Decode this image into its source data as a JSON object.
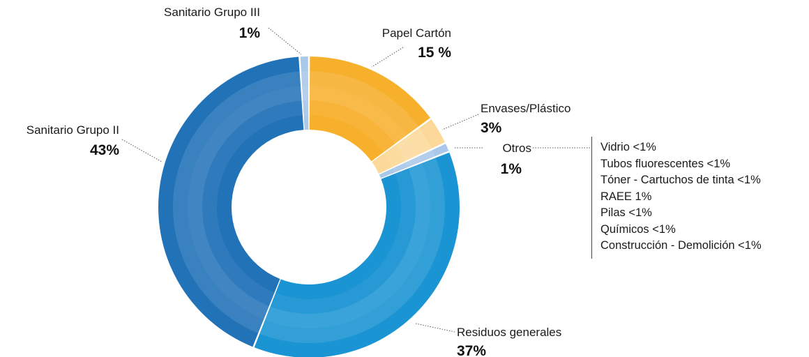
{
  "chart_data": {
    "type": "pie",
    "variant": "donut",
    "slices": [
      {
        "label": "Papel Cartón",
        "pct_label": "15 %",
        "value": 15,
        "color": "#f7b02c"
      },
      {
        "label": "Envases/Plástico",
        "pct_label": "3%",
        "value": 3,
        "color": "#fcd99a"
      },
      {
        "label": "Otros",
        "pct_label": "1%",
        "value": 1,
        "color": "#a9c8ea"
      },
      {
        "label": "Residuos generales",
        "pct_label": "37%",
        "value": 37,
        "color": "#1a94d3"
      },
      {
        "label": "Sanitario Grupo II",
        "pct_label": "43%",
        "value": 43,
        "color": "#2272b8"
      },
      {
        "label": "Sanitario Grupo III",
        "pct_label": "1%",
        "value": 1,
        "color": "#a9c8ea"
      }
    ],
    "otros_breakdown": [
      "Vidrio <1%",
      "Tubos fluorescentes <1%",
      "Tóner - Cartuchos de tinta <1%",
      "RAEE 1%",
      "Pilas <1%",
      "Químicos <1%",
      "Construcción - Demolición <1%"
    ],
    "legend": "none",
    "grid": false
  }
}
